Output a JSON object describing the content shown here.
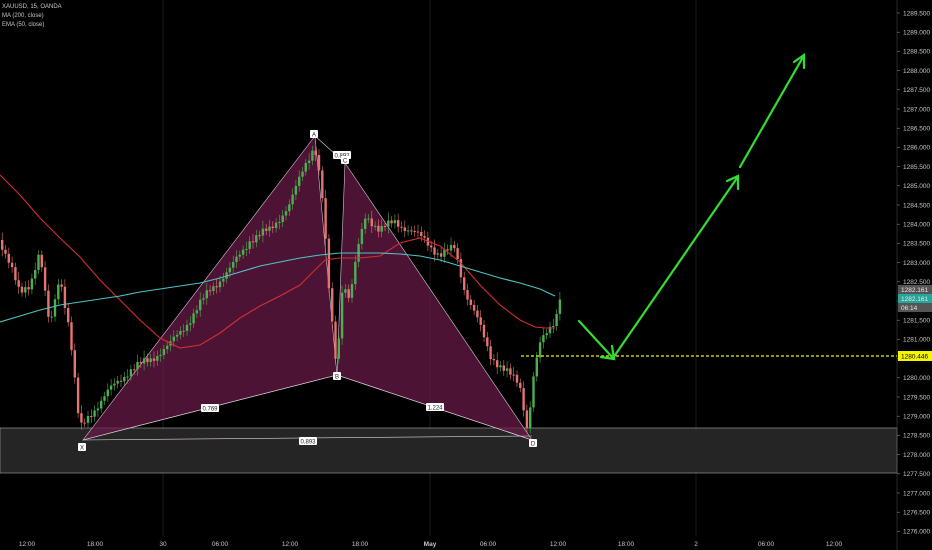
{
  "legend": {
    "symbol": "XAUUSD, 15, OANDA",
    "ma": "MA (200, close)",
    "ema": "EMA (50, close)"
  },
  "chart_data": {
    "type": "candlestick",
    "title": "XAUUSD, 15, OANDA",
    "y_ticks": [
      "1276.000",
      "1276.500",
      "1277.000",
      "1277.500",
      "1278.000",
      "1278.500",
      "1279.000",
      "1279.500",
      "1280.000",
      "1280.500",
      "1281.000",
      "1281.500",
      "1282.000",
      "1282.500",
      "1283.000",
      "1283.500",
      "1284.000",
      "1284.500",
      "1285.000",
      "1285.500",
      "1286.000",
      "1286.500",
      "1287.000",
      "1287.500",
      "1288.000",
      "1288.500",
      "1289.000",
      "1289.500"
    ],
    "ylim": [
      1275.8,
      1289.7
    ],
    "x_ticks": [
      "12:00",
      "18:00",
      "30",
      "06:00",
      "12:00",
      "18:00",
      "May",
      "06:00",
      "12:00",
      "18:00",
      "2",
      "06:00",
      "12:00"
    ],
    "price_tags": {
      "last": "1282.161",
      "ma_value": "1282.161",
      "countdown": "06:14",
      "level": "1280.446"
    },
    "level_value": 1280.446,
    "support_zone": [
      1277.45,
      1278.65
    ],
    "pattern": {
      "points": [
        {
          "label": "X",
          "value": 1278.35
        },
        {
          "label": "A",
          "value": 1286.2
        },
        {
          "label": "B",
          "value": 1280.0
        },
        {
          "label": "C",
          "value": 1285.6
        },
        {
          "label": "D",
          "value": 1278.35
        }
      ],
      "ratios": [
        "0.892",
        "0.769",
        "1.224",
        "0.893"
      ]
    },
    "series": [
      {
        "name": "MA (200, close)",
        "color": "#4fc3c3"
      },
      {
        "name": "EMA (50, close)",
        "color": "#d32f2f"
      }
    ],
    "projection": {
      "type": "arrows",
      "color": "#33dd33"
    },
    "grid": false
  }
}
